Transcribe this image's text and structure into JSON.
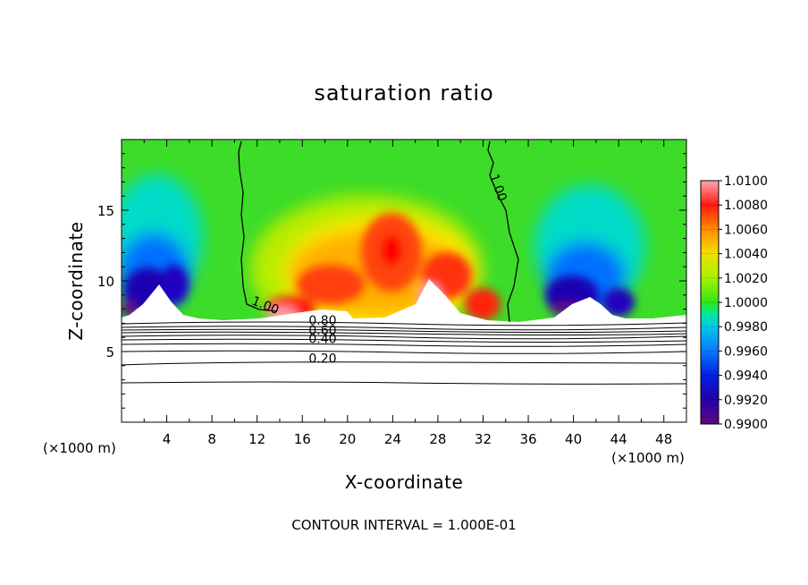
{
  "chart_data": {
    "type": "heatmap",
    "title": "saturation ratio",
    "xlabel": "X-coordinate",
    "ylabel": "Z-coordinate",
    "x_unit_left": "(×1000 m)",
    "x_unit_right": "(×1000 m)",
    "xlim": [
      0,
      50
    ],
    "ylim": [
      0,
      20
    ],
    "x_ticks": [
      4,
      8,
      12,
      16,
      20,
      24,
      28,
      32,
      36,
      40,
      44,
      48
    ],
    "y_ticks": [
      5,
      10,
      15
    ],
    "colorbar": {
      "min": 0.99,
      "max": 1.01,
      "ticks": [
        "1.0100",
        "1.0080",
        "1.0060",
        "1.0040",
        "1.0020",
        "1.0000",
        "0.9980",
        "0.9960",
        "0.9940",
        "0.9920",
        "0.9900"
      ],
      "colors": [
        "#5e0a80",
        "#2400a8",
        "#0020e0",
        "#0a78ff",
        "#00c8e8",
        "#00e8a0",
        "#2fe81a",
        "#d8f000",
        "#ff9a00",
        "#ff1a10",
        "#ffa0a8"
      ]
    },
    "contour_labels": [
      {
        "text": "1.00",
        "x": 12.6,
        "y": 8.0
      },
      {
        "text": "1.00",
        "x": 33.0,
        "y": 16.5
      },
      {
        "text": "0.80",
        "x": 17.8,
        "y": 6.9
      },
      {
        "text": "0.60",
        "x": 17.8,
        "y": 6.2
      },
      {
        "text": "0.40",
        "x": 17.8,
        "y": 5.6
      },
      {
        "text": "0.20",
        "x": 17.8,
        "y": 4.2
      }
    ],
    "footer": "CONTOUR INTERVAL = 1.000E-01"
  }
}
